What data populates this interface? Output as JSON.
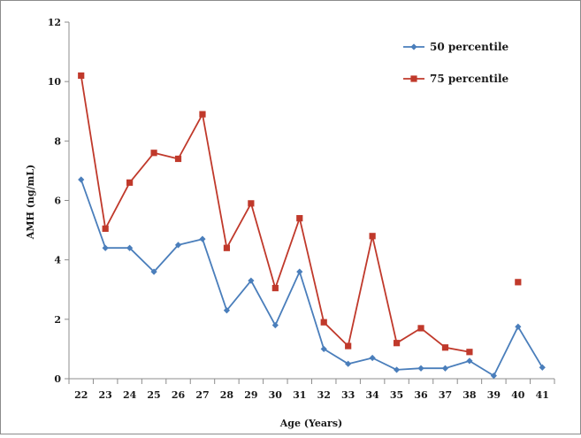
{
  "chart_data": {
    "type": "line",
    "title": "",
    "xlabel": "Age (Years)",
    "ylabel": "AMH (ng/mL)",
    "ylim": [
      0,
      12
    ],
    "yticks": [
      0,
      2,
      4,
      6,
      8,
      10,
      12
    ],
    "categories": [
      "22",
      "23",
      "24",
      "25",
      "26",
      "27",
      "28",
      "29",
      "30",
      "31",
      "32",
      "33",
      "34",
      "35",
      "36",
      "37",
      "38",
      "39",
      "40",
      "41"
    ],
    "grid": false,
    "legend_position": "top-right",
    "series": [
      {
        "name": "50 percentile",
        "color": "#4a7ebb",
        "marker": "diamond",
        "values": [
          6.7,
          4.4,
          4.4,
          3.6,
          4.5,
          4.7,
          2.3,
          3.3,
          1.8,
          3.6,
          1.0,
          0.5,
          0.7,
          0.3,
          0.35,
          0.35,
          0.6,
          0.1,
          1.75,
          0.38
        ]
      },
      {
        "name": "75 percentile",
        "color": "#c0392b",
        "marker": "square",
        "values": [
          10.2,
          5.05,
          6.6,
          7.6,
          7.4,
          8.9,
          4.4,
          5.9,
          3.05,
          5.4,
          1.9,
          1.1,
          4.8,
          1.2,
          1.7,
          1.05,
          0.9,
          null,
          3.25,
          null
        ]
      }
    ]
  }
}
